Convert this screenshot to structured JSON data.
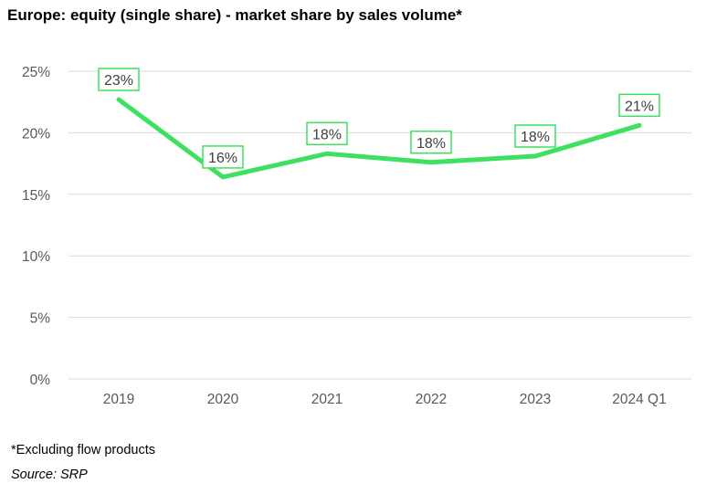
{
  "title": "Europe: equity (single share) - market share by sales volume*",
  "footnote": "*Excluding flow products",
  "source": "Source: SRP",
  "colors": {
    "line": "#3ee060",
    "grid": "#d9d9d9",
    "axis_text": "#595959",
    "label_text": "#404040"
  },
  "chart_data": {
    "type": "line",
    "categories": [
      "2019",
      "2020",
      "2021",
      "2022",
      "2023",
      "2024 Q1"
    ],
    "series": [
      {
        "values": [
          22.7,
          16.4,
          18.3,
          17.6,
          18.1,
          20.6
        ],
        "labels": [
          "23%",
          "16%",
          "18%",
          "18%",
          "18%",
          "21%"
        ]
      }
    ],
    "y_ticks": [
      "0%",
      "5%",
      "10%",
      "15%",
      "20%",
      "25%"
    ],
    "y_tick_values": [
      0,
      5,
      10,
      15,
      20,
      25
    ],
    "ylim": [
      0,
      25
    ],
    "grid": true,
    "legend": "none"
  }
}
